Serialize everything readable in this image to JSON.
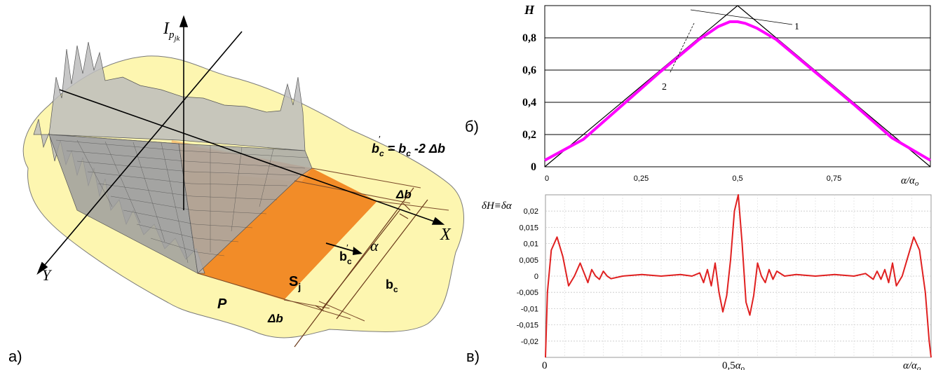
{
  "labels": {
    "panel_a": "а)",
    "panel_b": "б)",
    "panel_v": "в)"
  },
  "diagram_a": {
    "axis_I": "I",
    "axis_I_sub": "p",
    "axis_I_subsub": "jk",
    "axis_X": "X",
    "axis_Y": "Y",
    "alpha": "α",
    "S": "S",
    "S_sub": "j",
    "P": "P",
    "delta_b_top": "Δb",
    "delta_b_bottom": "Δb",
    "b_c_prime": "b",
    "b_c_prime_sub": "c",
    "b_c": "b",
    "b_c_sub": "c",
    "formula_b_prime": "b",
    "formula_sub": "c",
    "formula_rest": " = b",
    "formula_rest_sub": "c",
    "formula_end": " -2 Δb",
    "colors": {
      "blob": "#fdf6b0",
      "orange": "#f28c28",
      "light_orange": "#f6a657"
    }
  },
  "chart_data": [
    {
      "type": "line",
      "ylabel": "H",
      "xlabel": "α/α",
      "xlabel_sub": "o",
      "xlim": [
        0,
        1
      ],
      "ylim": [
        0,
        1
      ],
      "x_ticks": [
        "0",
        "0,25",
        "0,5",
        "0,75"
      ],
      "y_ticks": [
        "0",
        "0,2",
        "0,4",
        "0,6",
        "0,8"
      ],
      "annotations": [
        "1",
        "2"
      ],
      "series": [
        {
          "color": "#000000",
          "x": [
            0,
            0.5,
            1
          ],
          "y": [
            0,
            1,
            0
          ]
        },
        {
          "color": "#ff00ff",
          "x": [
            0,
            0.1,
            0.2,
            0.3,
            0.4,
            0.45,
            0.48,
            0.5,
            0.52,
            0.55,
            0.6,
            0.7,
            0.8,
            0.9,
            1.0
          ],
          "y": [
            0.04,
            0.17,
            0.38,
            0.59,
            0.79,
            0.87,
            0.9,
            0.9,
            0.89,
            0.86,
            0.79,
            0.59,
            0.39,
            0.18,
            0.04
          ]
        }
      ]
    },
    {
      "type": "line",
      "ylabel": "δH≡δα",
      "xlabel": "α/α",
      "xlabel_sub": "o",
      "ylim": [
        -0.025,
        0.025
      ],
      "y_ticks": [
        "0,02",
        "0,015",
        "0,01",
        "0,005",
        "0",
        "-0,005",
        "-0,01",
        "-0,015",
        "-0,02"
      ],
      "x_ticks": [
        "0",
        "0,5"
      ],
      "x_tick_mid_symbol": "α",
      "x_tick_mid_sub": "o",
      "series": [
        {
          "color": "#e02020",
          "x": [
            0,
            0.005,
            0.015,
            0.03,
            0.045,
            0.06,
            0.075,
            0.09,
            0.1,
            0.11,
            0.12,
            0.13,
            0.14,
            0.15,
            0.16,
            0.17,
            0.2,
            0.25,
            0.3,
            0.35,
            0.38,
            0.4,
            0.41,
            0.42,
            0.43,
            0.44,
            0.45,
            0.46,
            0.47,
            0.48,
            0.49,
            0.5,
            0.51,
            0.52,
            0.53,
            0.54,
            0.55,
            0.56,
            0.57,
            0.58,
            0.59,
            0.6,
            0.62,
            0.65,
            0.7,
            0.75,
            0.8,
            0.83,
            0.85,
            0.86,
            0.87,
            0.88,
            0.89,
            0.9,
            0.91,
            0.925,
            0.94,
            0.955,
            0.97,
            0.985,
            0.995,
            1.0
          ],
          "y": [
            -0.025,
            -0.005,
            0.008,
            0.012,
            0.006,
            -0.003,
            0.0,
            0.004,
            0.001,
            -0.002,
            0.002,
            0.0,
            -0.001,
            0.0015,
            0.0,
            -0.0008,
            0.0,
            0.0005,
            0.0,
            0.0005,
            0.0,
            0.001,
            -0.002,
            0.002,
            -0.003,
            0.004,
            -0.005,
            -0.011,
            -0.006,
            0.005,
            0.02,
            0.025,
            0.01,
            -0.008,
            -0.012,
            -0.006,
            0.004,
            0.0,
            -0.002,
            0.002,
            -0.001,
            0.0015,
            0.0,
            0.0005,
            0.0,
            0.0005,
            0.0,
            0.0008,
            -0.001,
            0.0015,
            -0.001,
            0.002,
            -0.002,
            0.004,
            -0.003,
            0.0,
            0.006,
            0.012,
            0.008,
            -0.005,
            -0.02,
            -0.025
          ]
        }
      ]
    }
  ]
}
